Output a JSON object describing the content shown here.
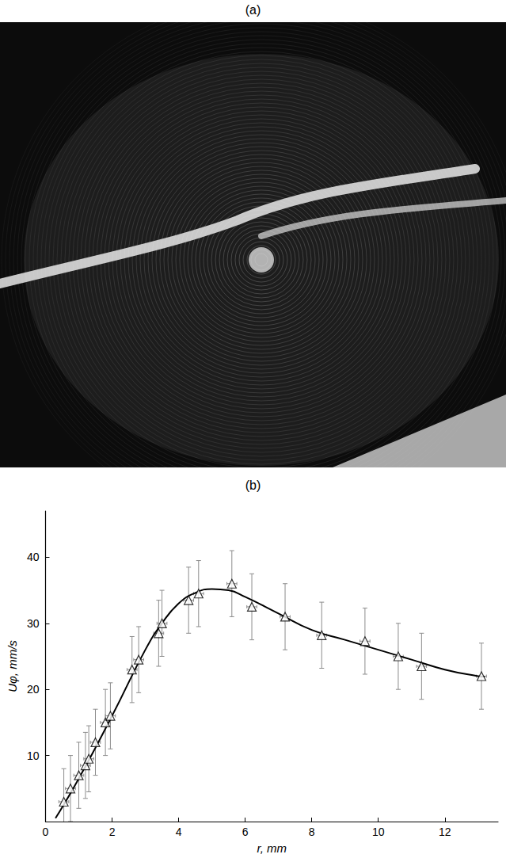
{
  "panel_a": {
    "title": "(a)"
  },
  "chart_data": {
    "type": "scatter",
    "title": "(b)",
    "x_label": "r, mm",
    "y_label": "Uφ, mm/s",
    "xlim": [
      0,
      13.6
    ],
    "xticks": [
      0,
      2,
      4,
      6,
      8,
      10,
      12
    ],
    "ylim": [
      0,
      47
    ],
    "yticks": [
      10,
      20,
      30,
      40
    ],
    "grid": false,
    "series": [
      {
        "type": "scatter",
        "marker": "triangle",
        "color": "#000000",
        "x": [
          0.55,
          0.75,
          1.0,
          1.2,
          1.3,
          1.5,
          1.8,
          1.95,
          2.6,
          2.8,
          3.4,
          3.5,
          4.3,
          4.6,
          5.6,
          6.2,
          7.2,
          8.3,
          9.6,
          10.6,
          11.3,
          13.1
        ],
        "values": [
          3,
          5,
          7,
          8.5,
          9.5,
          12,
          15,
          16,
          23,
          24.5,
          28.5,
          30,
          33.5,
          34.5,
          36,
          32.5,
          31,
          28.2,
          27.3,
          25,
          23.5,
          22
        ],
        "y_errors": [
          5,
          5,
          5,
          5,
          5,
          5,
          5,
          5,
          5,
          5,
          5,
          5,
          5,
          5,
          5,
          5,
          5,
          5,
          5,
          5,
          5,
          5
        ],
        "x_errors": [
          0.15,
          0.15,
          0.15,
          0.15,
          0.15,
          0.15,
          0.15,
          0.15,
          0.15,
          0.15,
          0.15,
          0.15,
          0.15,
          0.15,
          0.15,
          0.15,
          0.15,
          0.15,
          0.15,
          0.15,
          0.15,
          0.15
        ]
      },
      {
        "type": "line",
        "line_style": "solid",
        "color": "#000000",
        "x": [
          0.3,
          1,
          2,
          3,
          3.5,
          4,
          4.5,
          5,
          5.5,
          6,
          7,
          8,
          9,
          10,
          11,
          12,
          13,
          13.2
        ],
        "values": [
          0.5,
          6.5,
          16,
          26,
          30,
          33,
          34.6,
          35.2,
          35,
          34,
          31.5,
          29,
          27.5,
          26,
          24.5,
          23,
          22,
          21.9
        ]
      }
    ]
  }
}
